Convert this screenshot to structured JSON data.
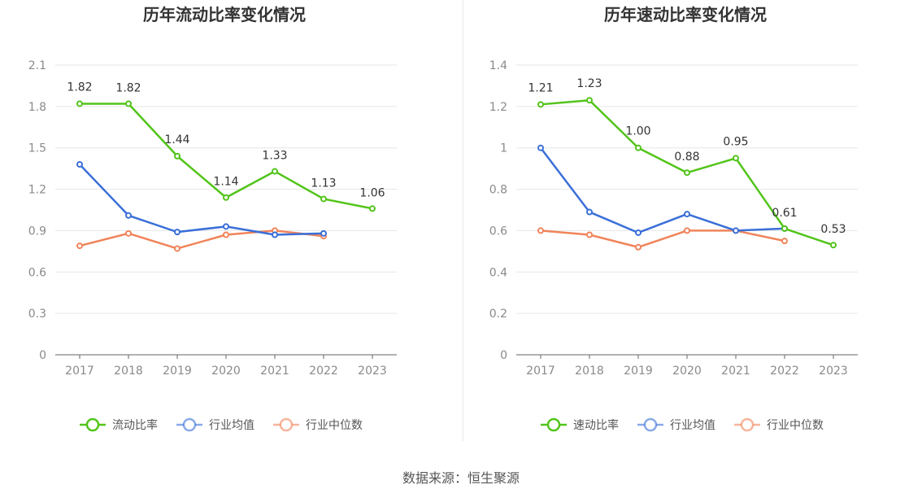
{
  "charts": [
    {
      "type": "line",
      "title": "历年流动比率变化情况",
      "categories": [
        "2017",
        "2018",
        "2019",
        "2020",
        "2021",
        "2022",
        "2023"
      ],
      "y_ticks": [
        "0",
        "0.3",
        "0.6",
        "0.9",
        "1.2",
        "1.5",
        "1.8",
        "2.1"
      ],
      "ylim": [
        0,
        2.1
      ],
      "grid": true,
      "legend_position": "bottom",
      "series": [
        {
          "name": "流动比率",
          "color": "#52c41a",
          "labels": true,
          "values": [
            1.82,
            1.82,
            1.44,
            1.14,
            1.33,
            1.13,
            1.06
          ]
        },
        {
          "name": "行业均值",
          "color": "#3a6fd8",
          "labels": false,
          "values": [
            1.38,
            1.01,
            0.89,
            0.93,
            0.87,
            0.88,
            null
          ]
        },
        {
          "name": "行业中位数",
          "color": "#f0845a",
          "labels": false,
          "values": [
            0.79,
            0.88,
            0.77,
            0.87,
            0.9,
            0.86,
            null
          ]
        }
      ]
    },
    {
      "type": "line",
      "title": "历年速动比率变化情况",
      "categories": [
        "2017",
        "2018",
        "2019",
        "2020",
        "2021",
        "2022",
        "2023"
      ],
      "y_ticks": [
        "0",
        "0.2",
        "0.4",
        "0.6",
        "0.8",
        "1",
        "1.2",
        "1.4"
      ],
      "ylim": [
        0,
        1.4
      ],
      "grid": true,
      "legend_position": "bottom",
      "series": [
        {
          "name": "速动比率",
          "color": "#52c41a",
          "labels": true,
          "values": [
            1.21,
            1.23,
            1.0,
            0.88,
            0.95,
            0.61,
            0.53
          ]
        },
        {
          "name": "行业均值",
          "color": "#3a6fd8",
          "labels": false,
          "values": [
            1.0,
            0.69,
            0.59,
            0.68,
            0.6,
            0.61,
            null
          ]
        },
        {
          "name": "行业中位数",
          "color": "#f0845a",
          "labels": false,
          "values": [
            0.6,
            0.58,
            0.52,
            0.6,
            0.6,
            0.55,
            null
          ]
        }
      ]
    }
  ],
  "chart_data": [
    {
      "type": "line",
      "title": "历年流动比率变化情况",
      "categories": [
        "2017",
        "2018",
        "2019",
        "2020",
        "2021",
        "2022",
        "2023"
      ],
      "ylim": [
        0,
        2.1
      ],
      "series": [
        {
          "name": "流动比率",
          "values": [
            1.82,
            1.82,
            1.44,
            1.14,
            1.33,
            1.13,
            1.06
          ]
        },
        {
          "name": "行业均值",
          "values": [
            1.38,
            1.01,
            0.89,
            0.93,
            0.87,
            0.88,
            null
          ]
        },
        {
          "name": "行业中位数",
          "values": [
            0.79,
            0.88,
            0.77,
            0.87,
            0.9,
            0.86,
            null
          ]
        }
      ]
    },
    {
      "type": "line",
      "title": "历年速动比率变化情况",
      "categories": [
        "2017",
        "2018",
        "2019",
        "2020",
        "2021",
        "2022",
        "2023"
      ],
      "ylim": [
        0,
        1.4
      ],
      "series": [
        {
          "name": "速动比率",
          "values": [
            1.21,
            1.23,
            1.0,
            0.88,
            0.95,
            0.61,
            0.53
          ]
        },
        {
          "name": "行业均值",
          "values": [
            1.0,
            0.69,
            0.59,
            0.68,
            0.6,
            0.61,
            null
          ]
        },
        {
          "name": "行业中位数",
          "values": [
            0.6,
            0.58,
            0.52,
            0.6,
            0.6,
            0.55,
            null
          ]
        }
      ]
    }
  ],
  "source_text": "数据来源：恒生聚源",
  "divider_color": "#e8e8e8",
  "grid_color": "#e6e6e6",
  "axis_color": "#666666"
}
